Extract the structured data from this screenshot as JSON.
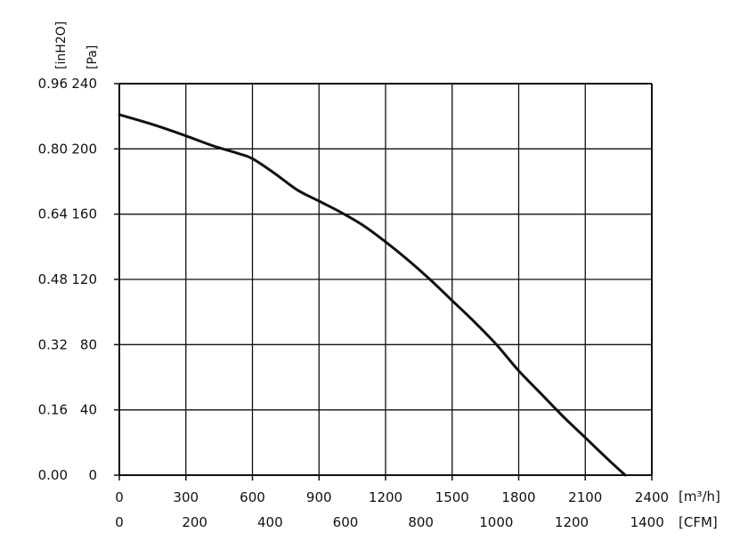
{
  "chart_data": {
    "type": "line",
    "title": "",
    "x_primary": {
      "unit_label": "[m³/h]",
      "range": [
        0,
        2400
      ],
      "ticks": [
        "0",
        "300",
        "600",
        "900",
        "1200",
        "1500",
        "1800",
        "2100",
        "2400"
      ]
    },
    "x_secondary": {
      "unit_label": "[CFM]",
      "ticks": [
        "0",
        "200",
        "400",
        "600",
        "800",
        "1000",
        "1200",
        "1400"
      ]
    },
    "y_primary": {
      "unit_label": "[Pa]",
      "range": [
        0,
        240
      ],
      "ticks": [
        "0",
        "40",
        "80",
        "120",
        "160",
        "200",
        "240"
      ]
    },
    "y_secondary": {
      "unit_label": "[inH2O]",
      "ticks": [
        "0.00",
        "0.16",
        "0.32",
        "0.48",
        "0.64",
        "0.80",
        "0.96"
      ]
    },
    "grid": true,
    "series": [
      {
        "points": [
          [
            0,
            221
          ],
          [
            150,
            215
          ],
          [
            300,
            208
          ],
          [
            420,
            202
          ],
          [
            540,
            197
          ],
          [
            600,
            194
          ],
          [
            700,
            185
          ],
          [
            800,
            175
          ],
          [
            900,
            168
          ],
          [
            1000,
            161
          ],
          [
            1100,
            153
          ],
          [
            1200,
            143
          ],
          [
            1300,
            132
          ],
          [
            1400,
            120
          ],
          [
            1500,
            107
          ],
          [
            1600,
            94
          ],
          [
            1700,
            80
          ],
          [
            1800,
            64
          ],
          [
            1900,
            50
          ],
          [
            2000,
            36
          ],
          [
            2100,
            23
          ],
          [
            2200,
            10
          ],
          [
            2280,
            0
          ]
        ],
        "color": "#111111"
      }
    ]
  }
}
